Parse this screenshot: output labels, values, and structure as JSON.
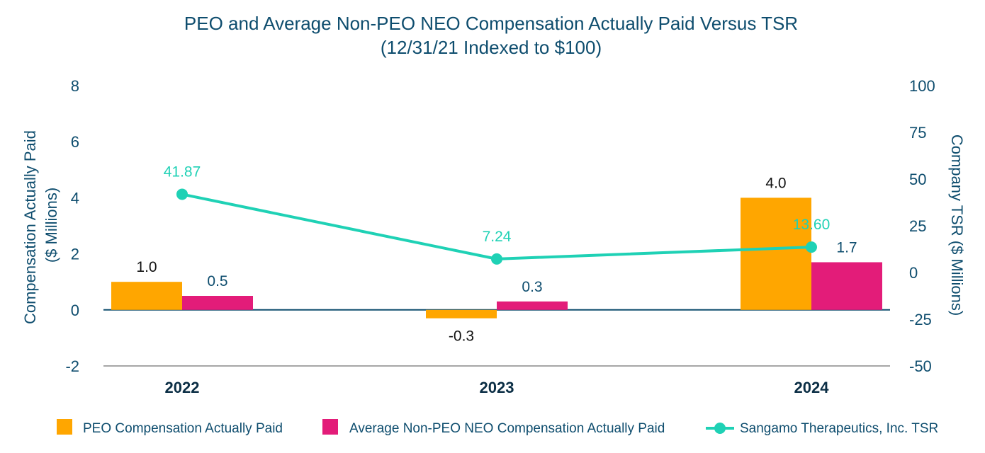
{
  "colors": {
    "peo": "#ffa600",
    "non_peo": "#e31c79",
    "tsr": "#1fd1b5",
    "text": "#0e4d6e",
    "axis": "#0e4d6e",
    "bottom_axis": "#a6a6a6"
  },
  "chart_data": {
    "type": "bar",
    "title": "PEO and Average Non-PEO NEO Compensation Actually Paid Versus TSR",
    "subtitle": "(12/31/21 Indexed to $100)",
    "categories": [
      "2022",
      "2023",
      "2024"
    ],
    "y_left": {
      "label_line1": "Compensation Actually Paid",
      "label_line2": "($ Millions)",
      "ticks": [
        "-2",
        "0",
        "2",
        "4",
        "6",
        "8"
      ],
      "ylim": [
        -2,
        8
      ]
    },
    "y_right": {
      "label": "Company TSR ($ Millions)",
      "ticks": [
        "-50",
        "-25",
        "0",
        "25",
        "50",
        "75",
        "100"
      ],
      "ylim": [
        -50,
        100
      ]
    },
    "series": [
      {
        "name": "PEO Compensation Actually Paid",
        "type": "bar",
        "axis": "left",
        "values": [
          1.0,
          -0.3,
          4.0
        ],
        "labels": [
          "1.0",
          "-0.3",
          "4.0"
        ]
      },
      {
        "name": "Average Non-PEO NEO Compensation Actually Paid",
        "type": "bar",
        "axis": "left",
        "values": [
          0.5,
          0.3,
          1.7
        ],
        "labels": [
          "0.5",
          "0.3",
          "1.7"
        ]
      },
      {
        "name": "Sangamo Therapeutics, Inc. TSR",
        "type": "line",
        "axis": "right",
        "values": [
          41.87,
          7.24,
          13.6
        ],
        "labels": [
          "41.87",
          "7.24",
          "13.60"
        ]
      }
    ]
  }
}
